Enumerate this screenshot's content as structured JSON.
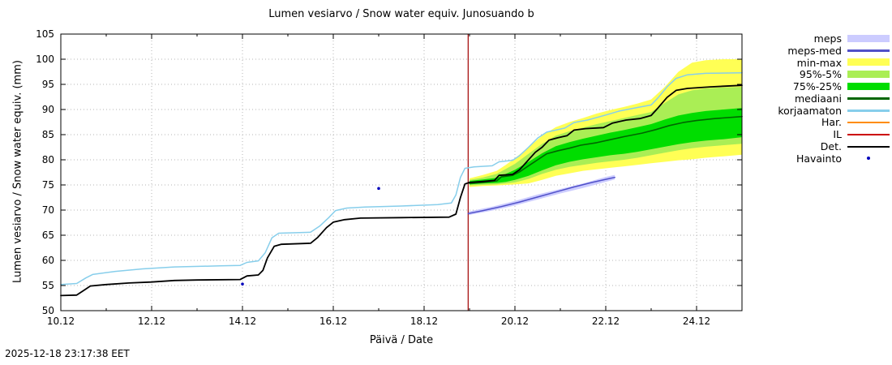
{
  "timestamp": "2025-12-18 23:17:38 EET",
  "legend": {
    "items": [
      {
        "label": "meps",
        "type": "band",
        "color": "#ccccff"
      },
      {
        "label": "meps-med",
        "type": "line",
        "color": "#5050c8"
      },
      {
        "label": "min-max",
        "type": "band",
        "color": "#ffff55"
      },
      {
        "label": "95%-5%",
        "type": "band",
        "color": "#aaee55"
      },
      {
        "label": "75%-25%",
        "type": "band",
        "color": "#00dd00"
      },
      {
        "label": "mediaani",
        "type": "line",
        "color": "#006600"
      },
      {
        "label": "korjaamaton",
        "type": "line",
        "color": "#87ceeb"
      },
      {
        "label": "Har.",
        "type": "line",
        "color": "#ff8c00"
      },
      {
        "label": "IL",
        "type": "line",
        "color": "#cc0000"
      },
      {
        "label": "Det.",
        "type": "line",
        "color": "#000000"
      },
      {
        "label": "Havainto",
        "type": "point",
        "color": "#0000bb"
      }
    ]
  },
  "chart_data": {
    "type": "line",
    "title": "Lumen vesiarvo / Snow water equiv.  Junosuando b",
    "xlabel": "Päivä / Date",
    "ylabel": "Lumen vesiarvo / Snow water equiv. (mm)",
    "xlim": [
      10,
      25
    ],
    "ylim": [
      50,
      105
    ],
    "grid": true,
    "x_ticks": [
      {
        "value": 10,
        "label": "10.12"
      },
      {
        "value": 12,
        "label": "12.12"
      },
      {
        "value": 14,
        "label": "14.12"
      },
      {
        "value": 16,
        "label": "16.12"
      },
      {
        "value": 18,
        "label": "18.12"
      },
      {
        "value": 20,
        "label": "20.12"
      },
      {
        "value": 22,
        "label": "22.12"
      },
      {
        "value": 24,
        "label": "24.12"
      }
    ],
    "y_ticks": [
      50,
      55,
      60,
      65,
      70,
      75,
      80,
      85,
      90,
      95,
      100,
      105
    ],
    "now_line_x": 18.97,
    "now_line_color": "#a00000",
    "bands": [
      {
        "name": "min-max",
        "color": "#ffff55",
        "x": [
          19.0,
          19.3,
          19.6,
          19.8,
          20.0,
          20.3,
          20.6,
          20.9,
          21.2,
          21.5,
          21.8,
          22.1,
          22.4,
          22.7,
          23.0,
          23.3,
          23.6,
          23.9,
          24.2,
          24.6,
          25.0
        ],
        "lower": [
          74.6,
          74.8,
          74.9,
          75.0,
          75.1,
          75.3,
          76.0,
          76.8,
          77.3,
          77.8,
          78.1,
          78.4,
          78.7,
          79.0,
          79.3,
          79.6,
          79.9,
          80.1,
          80.4,
          80.7,
          81.0
        ],
        "upper": [
          76.3,
          77.0,
          77.8,
          79.0,
          80.3,
          82.5,
          84.8,
          86.5,
          87.5,
          88.3,
          89.2,
          89.9,
          90.5,
          91.2,
          92.0,
          94.5,
          97.5,
          99.3,
          99.8,
          100.0,
          100.0
        ]
      },
      {
        "name": "95%-5%",
        "color": "#aaee55",
        "x": [
          19.0,
          19.3,
          19.6,
          19.8,
          20.0,
          20.3,
          20.6,
          20.9,
          21.2,
          21.5,
          21.8,
          22.1,
          22.4,
          22.7,
          23.0,
          23.3,
          23.6,
          23.9,
          24.2,
          24.6,
          25.0
        ],
        "lower": [
          74.9,
          75.0,
          75.1,
          75.3,
          75.5,
          76.2,
          77.2,
          78.0,
          78.6,
          79.0,
          79.4,
          79.7,
          80.0,
          80.4,
          80.9,
          81.4,
          81.9,
          82.3,
          82.6,
          82.9,
          83.2
        ],
        "upper": [
          76.0,
          76.5,
          77.2,
          78.2,
          79.2,
          81.2,
          83.2,
          84.8,
          85.7,
          86.4,
          87.1,
          87.7,
          88.3,
          88.9,
          89.5,
          91.3,
          93.0,
          93.8,
          94.2,
          94.4,
          94.5
        ]
      },
      {
        "name": "75%-25%",
        "color": "#00dd00",
        "x": [
          19.0,
          19.3,
          19.6,
          19.8,
          20.0,
          20.3,
          20.6,
          20.9,
          21.2,
          21.5,
          21.8,
          22.1,
          22.4,
          22.7,
          23.0,
          23.3,
          23.6,
          23.9,
          24.2,
          24.6,
          25.0
        ],
        "lower": [
          75.1,
          75.3,
          75.4,
          75.6,
          76.0,
          76.8,
          77.9,
          78.9,
          79.6,
          80.1,
          80.5,
          80.9,
          81.2,
          81.6,
          82.1,
          82.6,
          83.1,
          83.5,
          83.8,
          84.1,
          84.5
        ],
        "upper": [
          75.8,
          76.1,
          76.4,
          77.2,
          78.0,
          79.6,
          81.3,
          82.7,
          83.5,
          84.2,
          84.8,
          85.4,
          85.9,
          86.5,
          87.1,
          88.0,
          88.8,
          89.3,
          89.7,
          90.0,
          90.3
        ]
      },
      {
        "name": "meps",
        "color": "#ccccff",
        "x": [
          18.97,
          19.5,
          20.0,
          20.5,
          21.0,
          21.5,
          22.0,
          22.2
        ],
        "lower": [
          69.0,
          69.9,
          70.9,
          72.1,
          73.3,
          74.4,
          75.6,
          76.1
        ],
        "upper": [
          69.7,
          70.7,
          71.8,
          73.1,
          74.2,
          75.3,
          76.6,
          77.0
        ]
      }
    ],
    "lines": [
      {
        "name": "korjaamaton",
        "color": "#87ceeb",
        "width": 1.5,
        "points": [
          [
            10.0,
            55.2
          ],
          [
            10.35,
            55.4
          ],
          [
            10.55,
            56.5
          ],
          [
            10.7,
            57.2
          ],
          [
            11.2,
            57.8
          ],
          [
            11.8,
            58.3
          ],
          [
            12.5,
            58.7
          ],
          [
            13.5,
            58.9
          ],
          [
            13.95,
            59.0
          ],
          [
            14.1,
            59.6
          ],
          [
            14.35,
            59.9
          ],
          [
            14.5,
            61.5
          ],
          [
            14.65,
            64.5
          ],
          [
            14.8,
            65.4
          ],
          [
            15.5,
            65.6
          ],
          [
            15.7,
            66.8
          ],
          [
            15.9,
            68.5
          ],
          [
            16.05,
            69.9
          ],
          [
            16.3,
            70.4
          ],
          [
            16.7,
            70.6
          ],
          [
            17.5,
            70.8
          ],
          [
            18.3,
            71.1
          ],
          [
            18.6,
            71.4
          ],
          [
            18.7,
            73.0
          ],
          [
            18.8,
            76.5
          ],
          [
            18.9,
            78.3
          ],
          [
            19.1,
            78.6
          ],
          [
            19.5,
            78.8
          ],
          [
            19.65,
            79.6
          ],
          [
            19.95,
            79.9
          ],
          [
            20.1,
            80.8
          ],
          [
            20.3,
            82.5
          ],
          [
            20.5,
            84.3
          ],
          [
            20.7,
            85.5
          ],
          [
            20.9,
            85.9
          ],
          [
            21.1,
            86.3
          ],
          [
            21.3,
            87.4
          ],
          [
            21.6,
            87.9
          ],
          [
            22.0,
            88.9
          ],
          [
            22.3,
            89.7
          ],
          [
            22.7,
            90.4
          ],
          [
            23.0,
            90.9
          ],
          [
            23.15,
            92.3
          ],
          [
            23.35,
            94.5
          ],
          [
            23.55,
            96.2
          ],
          [
            23.8,
            96.9
          ],
          [
            24.2,
            97.2
          ],
          [
            25.0,
            97.3
          ]
        ]
      },
      {
        "name": "mediaani",
        "color": "#006600",
        "width": 1.6,
        "points": [
          [
            19.0,
            75.3
          ],
          [
            19.3,
            75.5
          ],
          [
            19.6,
            75.8
          ],
          [
            19.7,
            76.6
          ],
          [
            19.95,
            76.9
          ],
          [
            20.1,
            77.6
          ],
          [
            20.3,
            78.8
          ],
          [
            20.5,
            80.0
          ],
          [
            20.7,
            81.2
          ],
          [
            20.95,
            81.8
          ],
          [
            21.2,
            82.3
          ],
          [
            21.45,
            82.9
          ],
          [
            21.8,
            83.4
          ],
          [
            22.1,
            84.0
          ],
          [
            22.4,
            84.6
          ],
          [
            22.8,
            85.3
          ],
          [
            23.1,
            86.0
          ],
          [
            23.4,
            86.8
          ],
          [
            23.7,
            87.4
          ],
          [
            24.0,
            87.8
          ],
          [
            24.4,
            88.2
          ],
          [
            25.0,
            88.6
          ]
        ]
      },
      {
        "name": "meps-med",
        "color": "#5050c8",
        "width": 1.5,
        "points": [
          [
            18.97,
            69.3
          ],
          [
            19.3,
            69.9
          ],
          [
            19.7,
            70.7
          ],
          [
            20.1,
            71.6
          ],
          [
            20.5,
            72.6
          ],
          [
            20.9,
            73.6
          ],
          [
            21.3,
            74.6
          ],
          [
            21.7,
            75.5
          ],
          [
            22.1,
            76.3
          ],
          [
            22.2,
            76.5
          ]
        ]
      },
      {
        "name": "Det.",
        "color": "#000000",
        "width": 1.8,
        "points": [
          [
            10.0,
            53.0
          ],
          [
            10.35,
            53.1
          ],
          [
            10.5,
            54.0
          ],
          [
            10.65,
            54.9
          ],
          [
            11.0,
            55.2
          ],
          [
            11.5,
            55.5
          ],
          [
            12.0,
            55.7
          ],
          [
            12.5,
            56.0
          ],
          [
            13.0,
            56.1
          ],
          [
            13.95,
            56.2
          ],
          [
            14.1,
            56.9
          ],
          [
            14.35,
            57.1
          ],
          [
            14.45,
            58.0
          ],
          [
            14.55,
            60.5
          ],
          [
            14.7,
            62.8
          ],
          [
            14.85,
            63.2
          ],
          [
            15.5,
            63.4
          ],
          [
            15.65,
            64.5
          ],
          [
            15.85,
            66.5
          ],
          [
            16.0,
            67.6
          ],
          [
            16.25,
            68.1
          ],
          [
            16.6,
            68.4
          ],
          [
            17.5,
            68.5
          ],
          [
            18.55,
            68.6
          ],
          [
            18.7,
            69.2
          ],
          [
            18.8,
            72.5
          ],
          [
            18.9,
            75.2
          ],
          [
            19.0,
            75.5
          ],
          [
            19.3,
            75.7
          ],
          [
            19.55,
            75.9
          ],
          [
            19.65,
            76.9
          ],
          [
            19.95,
            77.1
          ],
          [
            20.1,
            78.0
          ],
          [
            20.25,
            79.5
          ],
          [
            20.45,
            81.5
          ],
          [
            20.6,
            82.5
          ],
          [
            20.75,
            83.9
          ],
          [
            20.95,
            84.4
          ],
          [
            21.15,
            84.8
          ],
          [
            21.3,
            85.9
          ],
          [
            21.55,
            86.2
          ],
          [
            21.95,
            86.4
          ],
          [
            22.15,
            87.3
          ],
          [
            22.45,
            87.9
          ],
          [
            22.75,
            88.2
          ],
          [
            23.0,
            88.8
          ],
          [
            23.15,
            90.3
          ],
          [
            23.35,
            92.4
          ],
          [
            23.55,
            93.8
          ],
          [
            23.8,
            94.2
          ],
          [
            24.3,
            94.5
          ],
          [
            25.0,
            94.8
          ]
        ]
      }
    ],
    "points": [
      {
        "name": "Havainto",
        "color": "#0000bb",
        "data": [
          [
            14.0,
            55.3
          ],
          [
            17.0,
            74.3
          ]
        ]
      }
    ]
  }
}
